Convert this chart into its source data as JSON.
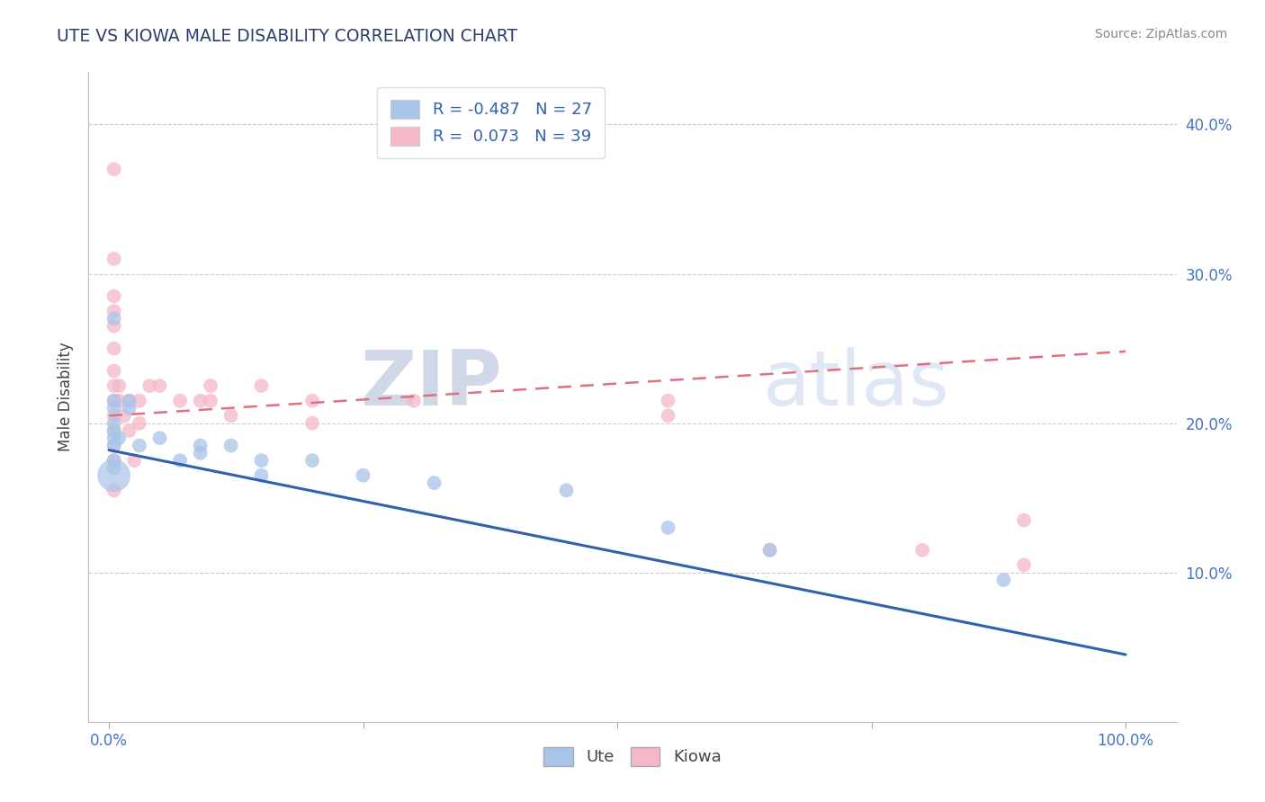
{
  "title": "UTE VS KIOWA MALE DISABILITY CORRELATION CHART",
  "source": "Source: ZipAtlas.com",
  "ylabel": "Male Disability",
  "y_ticks": [
    0.1,
    0.2,
    0.3,
    0.4
  ],
  "y_tick_labels": [
    "10.0%",
    "20.0%",
    "30.0%",
    "40.0%"
  ],
  "x_ticks": [
    0.0,
    1.0
  ],
  "x_tick_labels": [
    "0.0%",
    "100.0%"
  ],
  "xlim": [
    -0.02,
    1.05
  ],
  "ylim": [
    0.0,
    0.435
  ],
  "ute_R": -0.487,
  "ute_N": 27,
  "kiowa_R": 0.073,
  "kiowa_N": 39,
  "ute_color": "#a8c4e8",
  "kiowa_color": "#f5b8c8",
  "ute_line_color": "#3060b0",
  "kiowa_line_color": "#e07080",
  "ute_points": [
    [
      0.005,
      0.195
    ],
    [
      0.005,
      0.27
    ],
    [
      0.005,
      0.215
    ],
    [
      0.005,
      0.21
    ],
    [
      0.005,
      0.2
    ],
    [
      0.005,
      0.19
    ],
    [
      0.005,
      0.185
    ],
    [
      0.005,
      0.175
    ],
    [
      0.005,
      0.17
    ],
    [
      0.01,
      0.19
    ],
    [
      0.02,
      0.215
    ],
    [
      0.02,
      0.21
    ],
    [
      0.03,
      0.185
    ],
    [
      0.05,
      0.19
    ],
    [
      0.07,
      0.175
    ],
    [
      0.09,
      0.185
    ],
    [
      0.09,
      0.18
    ],
    [
      0.12,
      0.185
    ],
    [
      0.15,
      0.175
    ],
    [
      0.15,
      0.165
    ],
    [
      0.2,
      0.175
    ],
    [
      0.25,
      0.165
    ],
    [
      0.32,
      0.16
    ],
    [
      0.45,
      0.155
    ],
    [
      0.55,
      0.13
    ],
    [
      0.65,
      0.115
    ],
    [
      0.88,
      0.095
    ]
  ],
  "kiowa_points": [
    [
      0.005,
      0.37
    ],
    [
      0.005,
      0.31
    ],
    [
      0.005,
      0.285
    ],
    [
      0.005,
      0.275
    ],
    [
      0.005,
      0.265
    ],
    [
      0.005,
      0.25
    ],
    [
      0.005,
      0.235
    ],
    [
      0.005,
      0.225
    ],
    [
      0.005,
      0.215
    ],
    [
      0.005,
      0.205
    ],
    [
      0.005,
      0.195
    ],
    [
      0.005,
      0.185
    ],
    [
      0.005,
      0.175
    ],
    [
      0.005,
      0.155
    ],
    [
      0.01,
      0.225
    ],
    [
      0.01,
      0.215
    ],
    [
      0.015,
      0.205
    ],
    [
      0.02,
      0.215
    ],
    [
      0.02,
      0.195
    ],
    [
      0.025,
      0.175
    ],
    [
      0.03,
      0.215
    ],
    [
      0.03,
      0.2
    ],
    [
      0.04,
      0.225
    ],
    [
      0.05,
      0.225
    ],
    [
      0.07,
      0.215
    ],
    [
      0.09,
      0.215
    ],
    [
      0.1,
      0.225
    ],
    [
      0.1,
      0.215
    ],
    [
      0.12,
      0.205
    ],
    [
      0.15,
      0.225
    ],
    [
      0.2,
      0.215
    ],
    [
      0.2,
      0.2
    ],
    [
      0.3,
      0.215
    ],
    [
      0.55,
      0.215
    ],
    [
      0.55,
      0.205
    ],
    [
      0.65,
      0.115
    ],
    [
      0.8,
      0.115
    ],
    [
      0.9,
      0.135
    ],
    [
      0.9,
      0.105
    ]
  ],
  "ute_large_point": [
    0.005,
    0.165
  ],
  "ute_large_size": 700,
  "watermark_zip": "ZIP",
  "watermark_atlas": "atlas"
}
